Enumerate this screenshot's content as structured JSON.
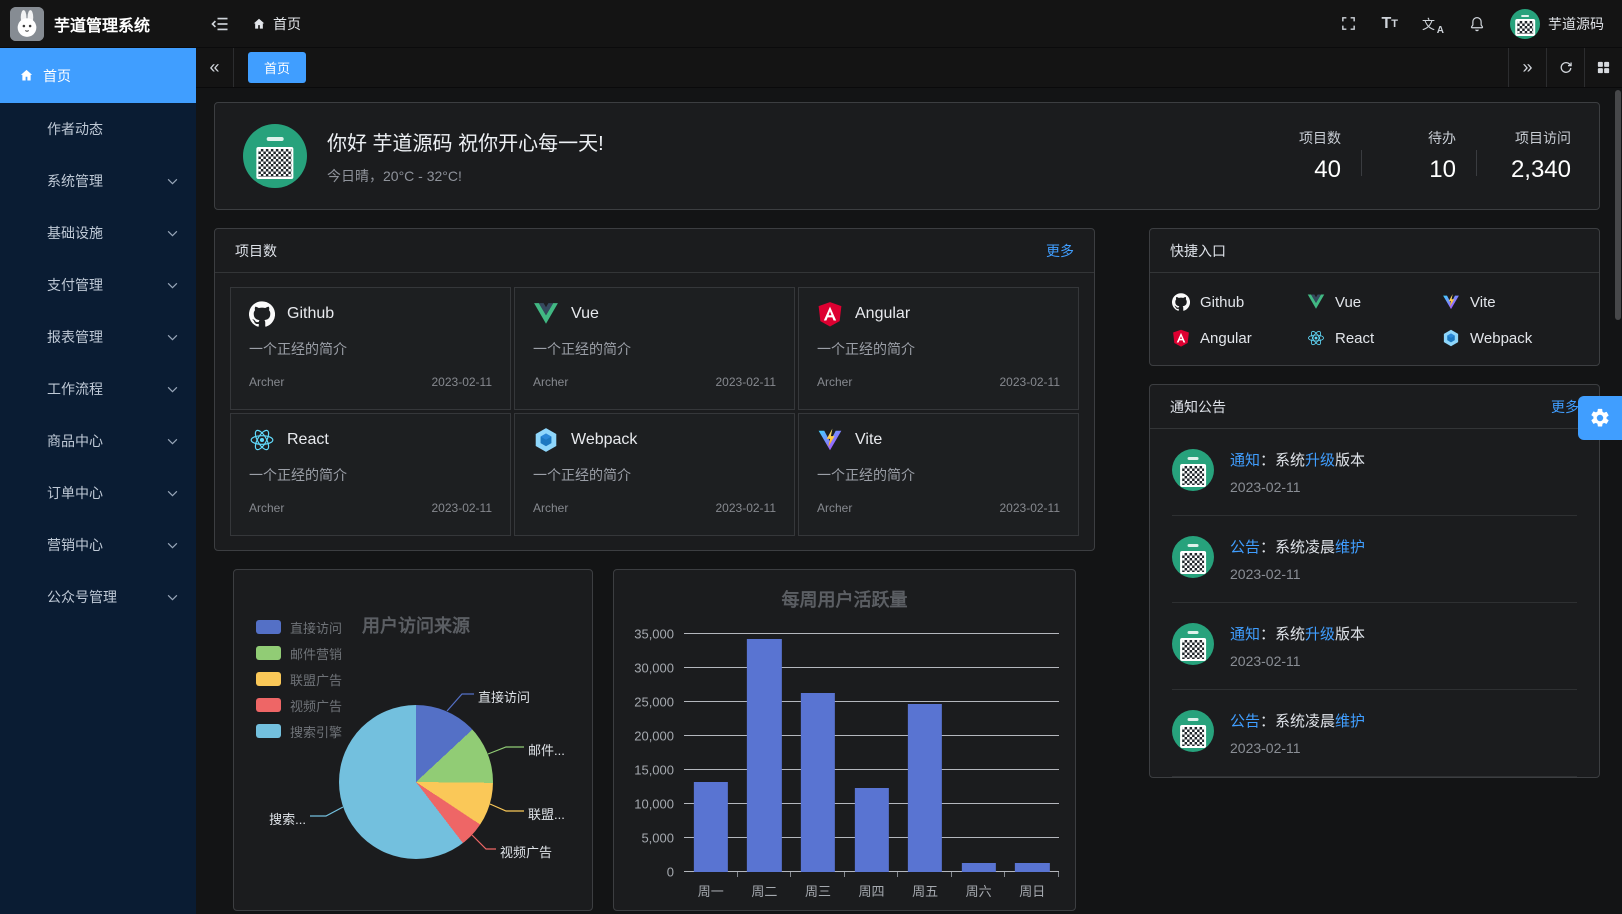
{
  "colors": {
    "accent": "#409eff"
  },
  "header": {
    "app_title": "芋道管理系统",
    "breadcrumb_home": "首页",
    "username": "芋道源码"
  },
  "tabbar": {
    "active_tab": "首页"
  },
  "sidebar": {
    "items": [
      {
        "label": "首页",
        "active": true
      },
      {
        "label": "作者动态"
      },
      {
        "label": "系统管理",
        "expandable": true
      },
      {
        "label": "基础设施",
        "expandable": true
      },
      {
        "label": "支付管理",
        "expandable": true
      },
      {
        "label": "报表管理",
        "expandable": true
      },
      {
        "label": "工作流程",
        "expandable": true
      },
      {
        "label": "商品中心",
        "expandable": true
      },
      {
        "label": "订单中心",
        "expandable": true
      },
      {
        "label": "营销中心",
        "expandable": true
      },
      {
        "label": "公众号管理",
        "expandable": true
      }
    ]
  },
  "welcome": {
    "greeting": "你好 芋道源码 祝你开心每一天!",
    "weather": "今日晴，20°C - 32°C!",
    "stats": [
      {
        "label": "项目数",
        "value": "40"
      },
      {
        "label": "待办",
        "value": "10"
      },
      {
        "label": "项目访问",
        "value": "2,340"
      }
    ]
  },
  "projects": {
    "title": "项目数",
    "more_label": "更多",
    "items": [
      {
        "name": "Github",
        "icon": "github-icon",
        "desc": "一个正经的简介",
        "author": "Archer",
        "date": "2023-02-11"
      },
      {
        "name": "Vue",
        "icon": "vue-icon",
        "desc": "一个正经的简介",
        "author": "Archer",
        "date": "2023-02-11"
      },
      {
        "name": "Angular",
        "icon": "angular-icon",
        "desc": "一个正经的简介",
        "author": "Archer",
        "date": "2023-02-11"
      },
      {
        "name": "React",
        "icon": "react-icon",
        "desc": "一个正经的简介",
        "author": "Archer",
        "date": "2023-02-11"
      },
      {
        "name": "Webpack",
        "icon": "webpack-icon",
        "desc": "一个正经的简介",
        "author": "Archer",
        "date": "2023-02-11"
      },
      {
        "name": "Vite",
        "icon": "vite-icon",
        "desc": "一个正经的简介",
        "author": "Archer",
        "date": "2023-02-11"
      }
    ]
  },
  "shortcuts": {
    "title": "快捷入口",
    "items": [
      {
        "label": "Github",
        "icon": "github-icon"
      },
      {
        "label": "Vue",
        "icon": "vue-icon"
      },
      {
        "label": "Vite",
        "icon": "vite-icon"
      },
      {
        "label": "Angular",
        "icon": "angular-icon"
      },
      {
        "label": "React",
        "icon": "react-icon"
      },
      {
        "label": "Webpack",
        "icon": "webpack-icon"
      }
    ]
  },
  "notices": {
    "title": "通知公告",
    "more_label": "更多",
    "items": [
      {
        "tag": "通知",
        "pre": "：系统",
        "link": "升级",
        "post": "版本",
        "date": "2023-02-11"
      },
      {
        "tag": "公告",
        "pre": "：系统凌晨",
        "link": "维护",
        "post": "",
        "date": "2023-02-11"
      },
      {
        "tag": "通知",
        "pre": "：系统",
        "link": "升级",
        "post": "版本",
        "date": "2023-02-11"
      },
      {
        "tag": "公告",
        "pre": "：系统凌晨",
        "link": "维护",
        "post": "",
        "date": "2023-02-11"
      }
    ]
  },
  "chart_data": [
    {
      "type": "pie",
      "title": "用户访问来源",
      "names": [
        "直接访问",
        "邮件营销",
        "联盟广告",
        "视频广告",
        "搜索引擎"
      ],
      "values": [
        335,
        310,
        234,
        135,
        1548
      ],
      "colors": [
        "#5470C6",
        "#91CC75",
        "#FAC858",
        "#EE6666",
        "#73C0DE"
      ],
      "legend_position": "left",
      "callout_labels": [
        "直接访问",
        "邮件...",
        "联盟...",
        "视频广告",
        "搜索..."
      ]
    },
    {
      "type": "bar",
      "title": "每周用户活跃量",
      "categories": [
        "周一",
        "周二",
        "周三",
        "周四",
        "周五",
        "周六",
        "周日"
      ],
      "values": [
        13253,
        34235,
        26321,
        12340,
        24643,
        1322,
        1324
      ],
      "ylim": [
        0,
        35000
      ],
      "ytick_step": 5000,
      "yticks": [
        "0",
        "5,000",
        "10,000",
        "15,000",
        "20,000",
        "25,000",
        "30,000",
        "35,000"
      ],
      "bar_color": "#5974d2",
      "grid": true
    }
  ]
}
